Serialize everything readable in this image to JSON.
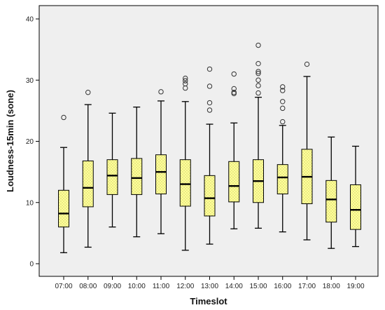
{
  "chart_data": {
    "type": "boxplot",
    "xlabel": "Timeslot",
    "ylabel": "Loudness-15min (sone)",
    "ylim": [
      0,
      40
    ],
    "yticks": [
      0,
      10,
      20,
      30,
      40
    ],
    "grid": false,
    "colors": {
      "plot_bg": "#efefef",
      "box_fill": "#ffff99",
      "box_stroke": "#000000"
    },
    "categories": [
      "07:00",
      "08:00",
      "09:00",
      "10:00",
      "11:00",
      "12:00",
      "13:00",
      "14:00",
      "15:00",
      "16:00",
      "17:00",
      "18:00",
      "19:00"
    ],
    "boxes": [
      {
        "min": 1.8,
        "q1": 6.0,
        "median": 8.2,
        "q3": 12.0,
        "max": 19.0,
        "outliers": [
          23.9
        ]
      },
      {
        "min": 2.7,
        "q1": 9.3,
        "median": 12.4,
        "q3": 16.8,
        "max": 26.0,
        "outliers": [
          28.0
        ]
      },
      {
        "min": 6.0,
        "q1": 11.3,
        "median": 14.4,
        "q3": 17.0,
        "max": 24.6,
        "outliers": []
      },
      {
        "min": 4.4,
        "q1": 11.3,
        "median": 14.0,
        "q3": 17.2,
        "max": 25.6,
        "outliers": []
      },
      {
        "min": 4.9,
        "q1": 11.4,
        "median": 15.0,
        "q3": 17.8,
        "max": 26.6,
        "outliers": [
          28.1
        ]
      },
      {
        "min": 2.2,
        "q1": 9.4,
        "median": 13.0,
        "q3": 17.0,
        "max": 26.5,
        "outliers": [
          28.7,
          29.4,
          29.9,
          30.3
        ]
      },
      {
        "min": 3.2,
        "q1": 7.8,
        "median": 10.7,
        "q3": 14.4,
        "max": 22.8,
        "outliers": [
          25.1,
          26.3,
          29.0,
          31.8
        ]
      },
      {
        "min": 5.7,
        "q1": 10.1,
        "median": 12.7,
        "q3": 16.7,
        "max": 23.0,
        "outliers": [
          27.8,
          28.0,
          28.6,
          31.0
        ]
      },
      {
        "min": 5.8,
        "q1": 10.0,
        "median": 13.5,
        "q3": 17.0,
        "max": 27.2,
        "outliers": [
          27.9,
          29.1,
          30.0,
          31.1,
          31.4,
          32.7,
          35.7
        ]
      },
      {
        "min": 5.2,
        "q1": 11.4,
        "median": 14.1,
        "q3": 16.2,
        "max": 22.6,
        "outliers": [
          23.2,
          25.4,
          26.5,
          28.3,
          28.9
        ]
      },
      {
        "min": 3.9,
        "q1": 9.8,
        "median": 14.2,
        "q3": 18.7,
        "max": 30.6,
        "outliers": [
          32.6
        ]
      },
      {
        "min": 2.5,
        "q1": 6.8,
        "median": 10.5,
        "q3": 13.6,
        "max": 20.7,
        "outliers": []
      },
      {
        "min": 2.8,
        "q1": 5.6,
        "median": 8.8,
        "q3": 12.9,
        "max": 19.2,
        "outliers": []
      }
    ]
  }
}
